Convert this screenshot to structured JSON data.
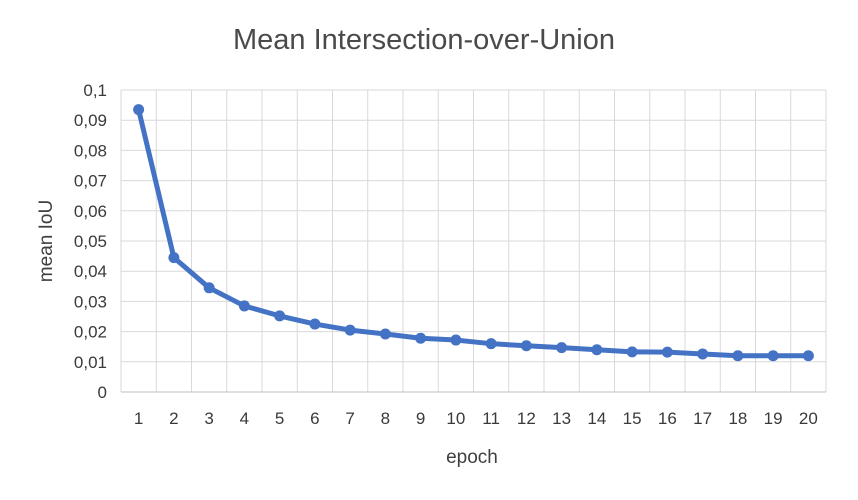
{
  "chart_data": {
    "type": "line",
    "title": "Mean Intersection-over-Union",
    "xlabel": "epoch",
    "ylabel": "mean IoU",
    "categories": [
      "1",
      "2",
      "3",
      "4",
      "5",
      "6",
      "7",
      "8",
      "9",
      "10",
      "11",
      "12",
      "13",
      "14",
      "15",
      "16",
      "17",
      "18",
      "19",
      "20"
    ],
    "series": [
      {
        "values": [
          0.0935,
          0.0445,
          0.0345,
          0.0285,
          0.0252,
          0.0225,
          0.0205,
          0.0192,
          0.0178,
          0.0172,
          0.016,
          0.0153,
          0.0147,
          0.014,
          0.0133,
          0.0132,
          0.0126,
          0.012,
          0.012,
          0.012
        ],
        "color": "#4472C4"
      }
    ],
    "ylim": [
      0,
      0.1
    ],
    "yticks": [
      "0",
      "0,01",
      "0,02",
      "0,03",
      "0,04",
      "0,05",
      "0,06",
      "0,07",
      "0,08",
      "0,09",
      "0,1"
    ],
    "grid": true,
    "legend": "none"
  }
}
